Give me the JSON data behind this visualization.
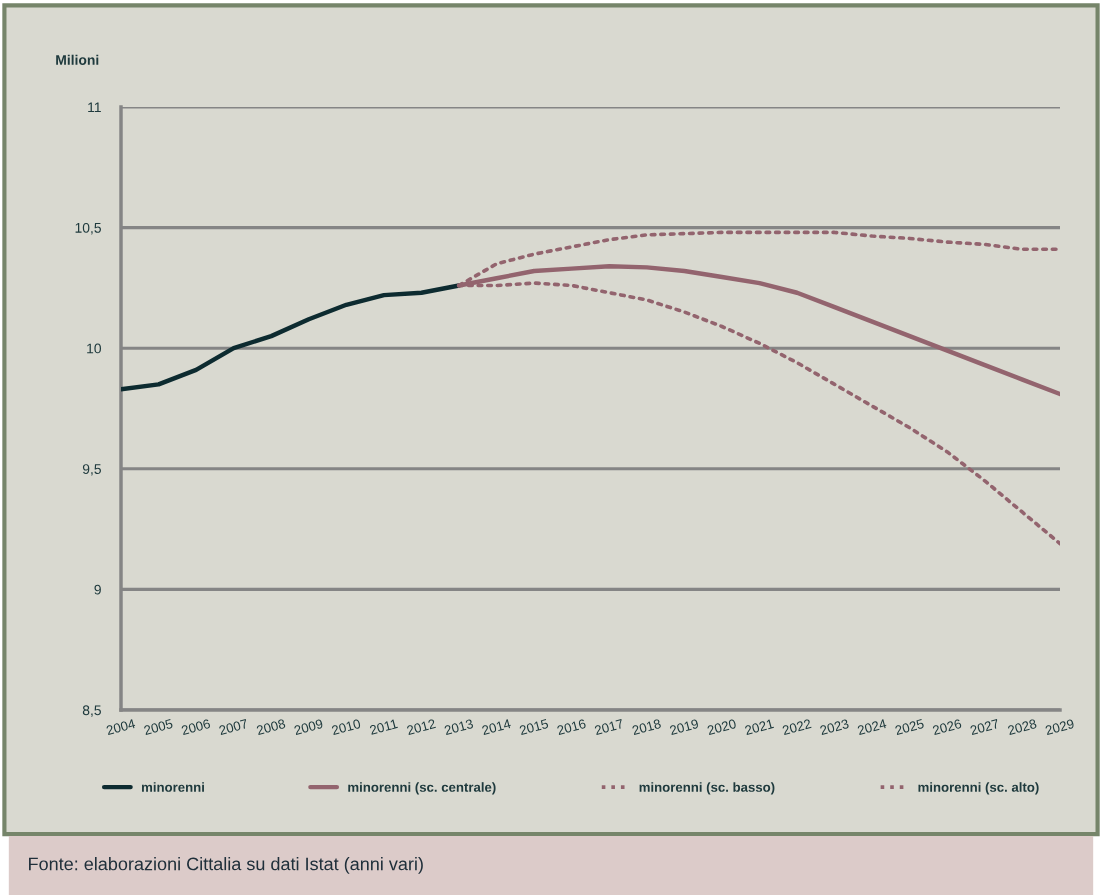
{
  "chart_data": {
    "type": "line",
    "ylabel": "Milioni",
    "categories": [
      "2004",
      "2005",
      "2006",
      "2007",
      "2008",
      "2009",
      "2010",
      "2011",
      "2012",
      "2013",
      "2014",
      "2015",
      "2016",
      "2017",
      "2018",
      "2019",
      "2020",
      "2021",
      "2022",
      "2023",
      "2024",
      "2025",
      "2026",
      "2027",
      "2028",
      "2029"
    ],
    "series": [
      {
        "name": "minorenni",
        "color": "#0d2b30",
        "line_style": "solid",
        "values": [
          9.83,
          9.85,
          9.91,
          10.0,
          10.05,
          10.12,
          10.18,
          10.22,
          10.23,
          10.26,
          null,
          null,
          null,
          null,
          null,
          null,
          null,
          null,
          null,
          null,
          null,
          null,
          null,
          null,
          null,
          null
        ]
      },
      {
        "name": "minorenni (sc. centrale)",
        "color": "#93646e",
        "line_style": "solid",
        "values": [
          null,
          null,
          null,
          null,
          null,
          null,
          null,
          null,
          null,
          10.26,
          10.29,
          10.32,
          10.33,
          10.34,
          10.335,
          10.32,
          10.295,
          10.27,
          10.23,
          10.17,
          10.11,
          10.05,
          9.99,
          9.93,
          9.87,
          9.81
        ]
      },
      {
        "name": "minorenni (sc. basso)",
        "color": "#93646e",
        "line_style": "dotted",
        "values": [
          null,
          null,
          null,
          null,
          null,
          null,
          null,
          null,
          null,
          10.26,
          10.26,
          10.27,
          10.26,
          10.23,
          10.2,
          10.15,
          10.09,
          10.02,
          9.94,
          9.85,
          9.76,
          9.67,
          9.57,
          9.45,
          9.32,
          9.19
        ]
      },
      {
        "name": "minorenni (sc. alto)",
        "color": "#93646e",
        "line_style": "dotted",
        "values": [
          null,
          null,
          null,
          null,
          null,
          null,
          null,
          null,
          null,
          10.26,
          10.35,
          10.39,
          10.42,
          10.45,
          10.47,
          10.475,
          10.48,
          10.48,
          10.48,
          10.48,
          10.465,
          10.455,
          10.44,
          10.43,
          10.41,
          10.41
        ]
      }
    ],
    "ylim": [
      8.5,
      11
    ],
    "yticks": [
      {
        "value": 8.5,
        "label": "8,5"
      },
      9,
      {
        "value": 9.5,
        "label": "9,5"
      },
      10,
      {
        "value": 10.5,
        "label": "10,5"
      },
      11
    ],
    "grid": "y",
    "legend": "bottom",
    "annotations": [
      "Fonte: elaborazioni Cittalia su dati Istat (anni vari)"
    ]
  }
}
